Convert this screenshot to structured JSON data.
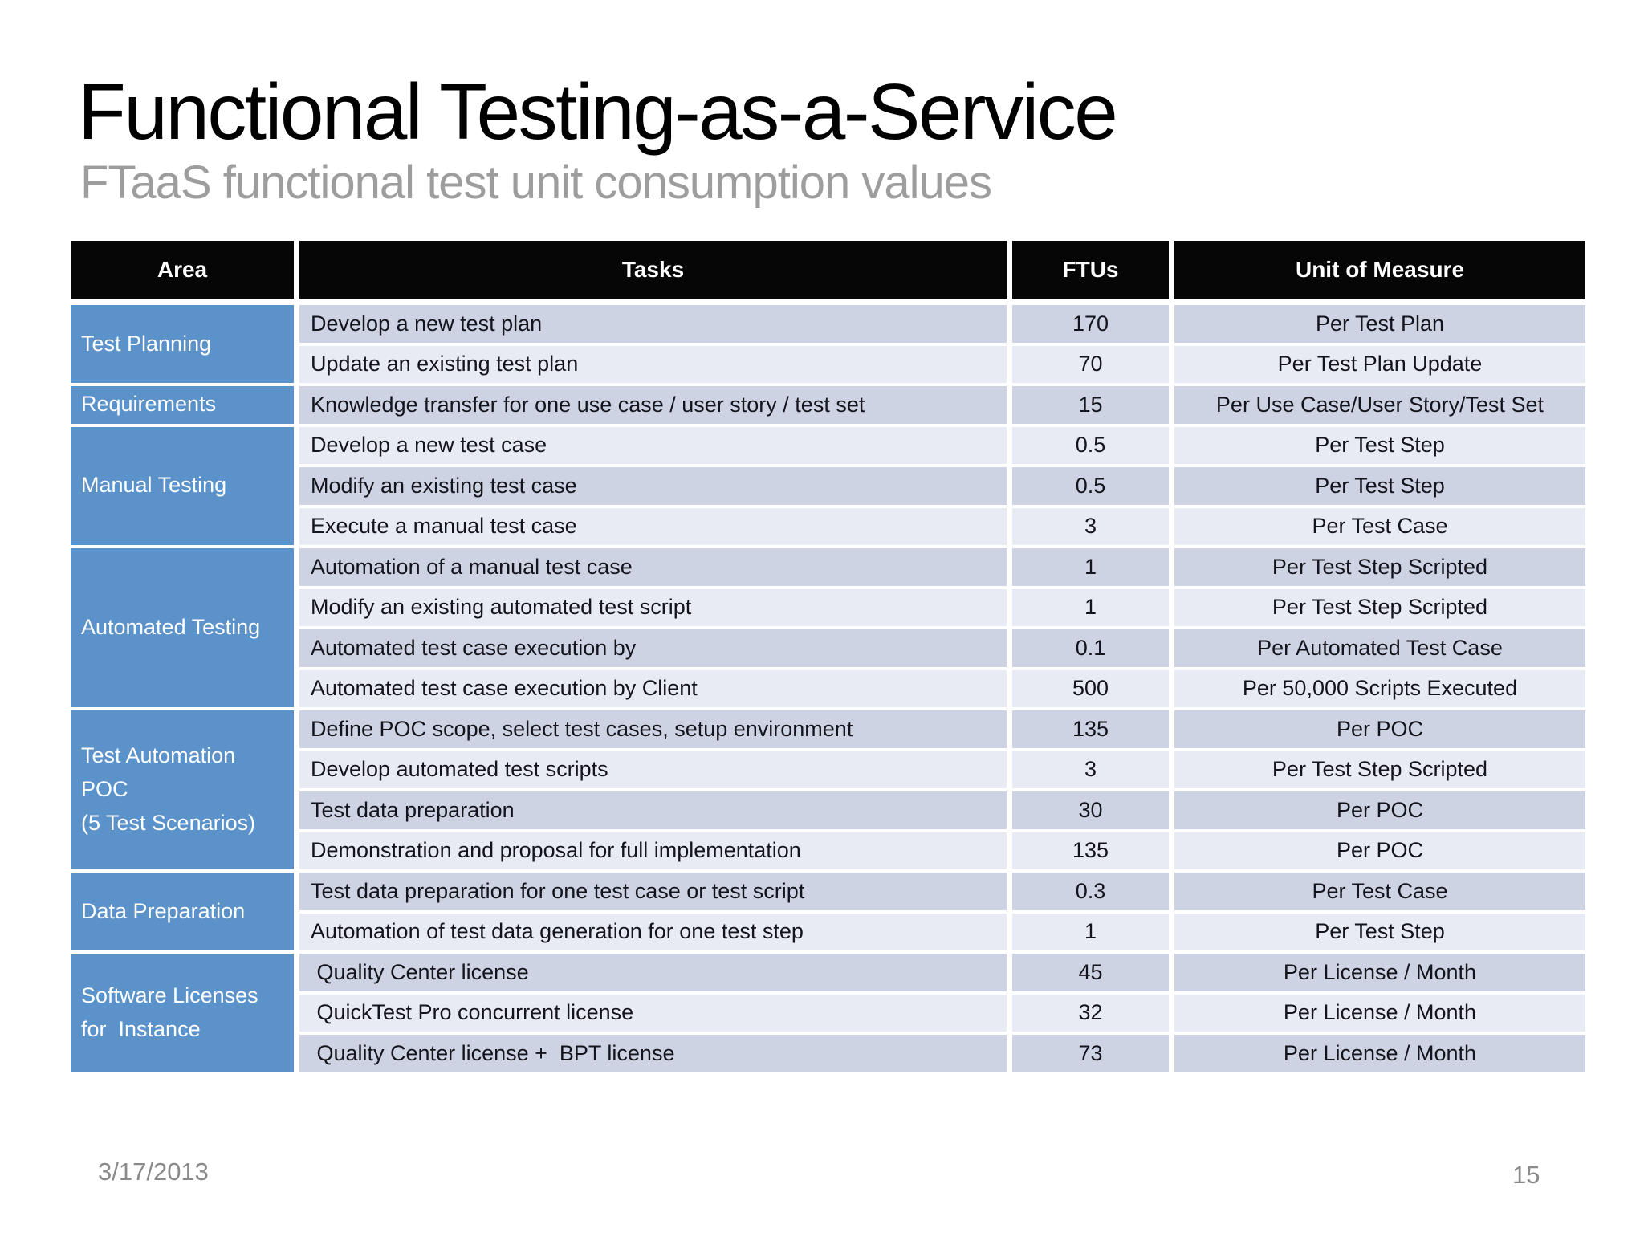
{
  "slide": {
    "title": "Functional Testing-as-a-Service",
    "subtitle": "FTaaS functional test unit consumption values",
    "footer": {
      "date": "3/17/2013",
      "page_number": "15"
    }
  },
  "table": {
    "columns": [
      "Area",
      "Tasks",
      "FTUs",
      "Unit of Measure"
    ],
    "groups": [
      {
        "area": "Test Planning",
        "rows": [
          {
            "task": "Develop a new test plan",
            "ftus": "170",
            "unit": "Per Test Plan"
          },
          {
            "task": "Update an existing test plan",
            "ftus": "70",
            "unit": "Per Test Plan Update"
          }
        ]
      },
      {
        "area": "Requirements",
        "rows": [
          {
            "task": "Knowledge transfer for one use case / user story / test set",
            "ftus": "15",
            "unit": "Per Use Case/User Story/Test Set"
          }
        ]
      },
      {
        "area": "Manual Testing",
        "rows": [
          {
            "task": "Develop a new test case",
            "ftus": "0.5",
            "unit": "Per Test Step"
          },
          {
            "task": "Modify an existing test case",
            "ftus": "0.5",
            "unit": "Per Test Step"
          },
          {
            "task": "Execute a manual test case",
            "ftus": "3",
            "unit": "Per Test Case"
          }
        ]
      },
      {
        "area": "Automated Testing",
        "rows": [
          {
            "task": "Automation of a manual test case",
            "ftus": "1",
            "unit": "Per Test Step Scripted"
          },
          {
            "task": "Modify an existing automated test script",
            "ftus": "1",
            "unit": "Per Test Step Scripted"
          },
          {
            "task": "Automated test case execution by",
            "ftus": "0.1",
            "unit": "Per Automated Test Case"
          },
          {
            "task": "Automated test case execution by Client",
            "ftus": "500",
            "unit": "Per 50,000 Scripts Executed"
          }
        ]
      },
      {
        "area": "Test Automation\nPOC\n(5 Test Scenarios)",
        "rows": [
          {
            "task": "Define POC scope, select test cases, setup environment",
            "ftus": "135",
            "unit": "Per POC"
          },
          {
            "task": "Develop automated test scripts",
            "ftus": "3",
            "unit": "Per Test Step Scripted"
          },
          {
            "task": "Test data preparation",
            "ftus": "30",
            "unit": "Per POC"
          },
          {
            "task": "Demonstration and proposal for full implementation",
            "ftus": "135",
            "unit": "Per POC"
          }
        ]
      },
      {
        "area": "Data Preparation",
        "rows": [
          {
            "task": "Test data preparation for one test case or test script",
            "ftus": "0.3",
            "unit": "Per Test Case"
          },
          {
            "task": "Automation of test data generation for one test step",
            "ftus": "1",
            "unit": "Per Test Step"
          }
        ]
      },
      {
        "area": "Software Licenses\nfor  Instance",
        "rows": [
          {
            "task": " Quality Center license",
            "ftus": "45",
            "unit": "Per License / Month"
          },
          {
            "task": " QuickTest Pro concurrent license",
            "ftus": "32",
            "unit": "Per License / Month"
          },
          {
            "task": " Quality Center license +  BPT license",
            "ftus": "73",
            "unit": "Per License / Month"
          }
        ]
      }
    ]
  },
  "colors": {
    "header_bg": "#060606",
    "header_text": "#ffffff",
    "area_bg": "#5b92c9",
    "row_dark": "#cdd3e3",
    "row_light": "#e9ebf4",
    "cell_text": "#14141c",
    "title_text": "#000000",
    "subtitle_text": "#9d9d9d",
    "footer_text": "#8a8a8a"
  }
}
